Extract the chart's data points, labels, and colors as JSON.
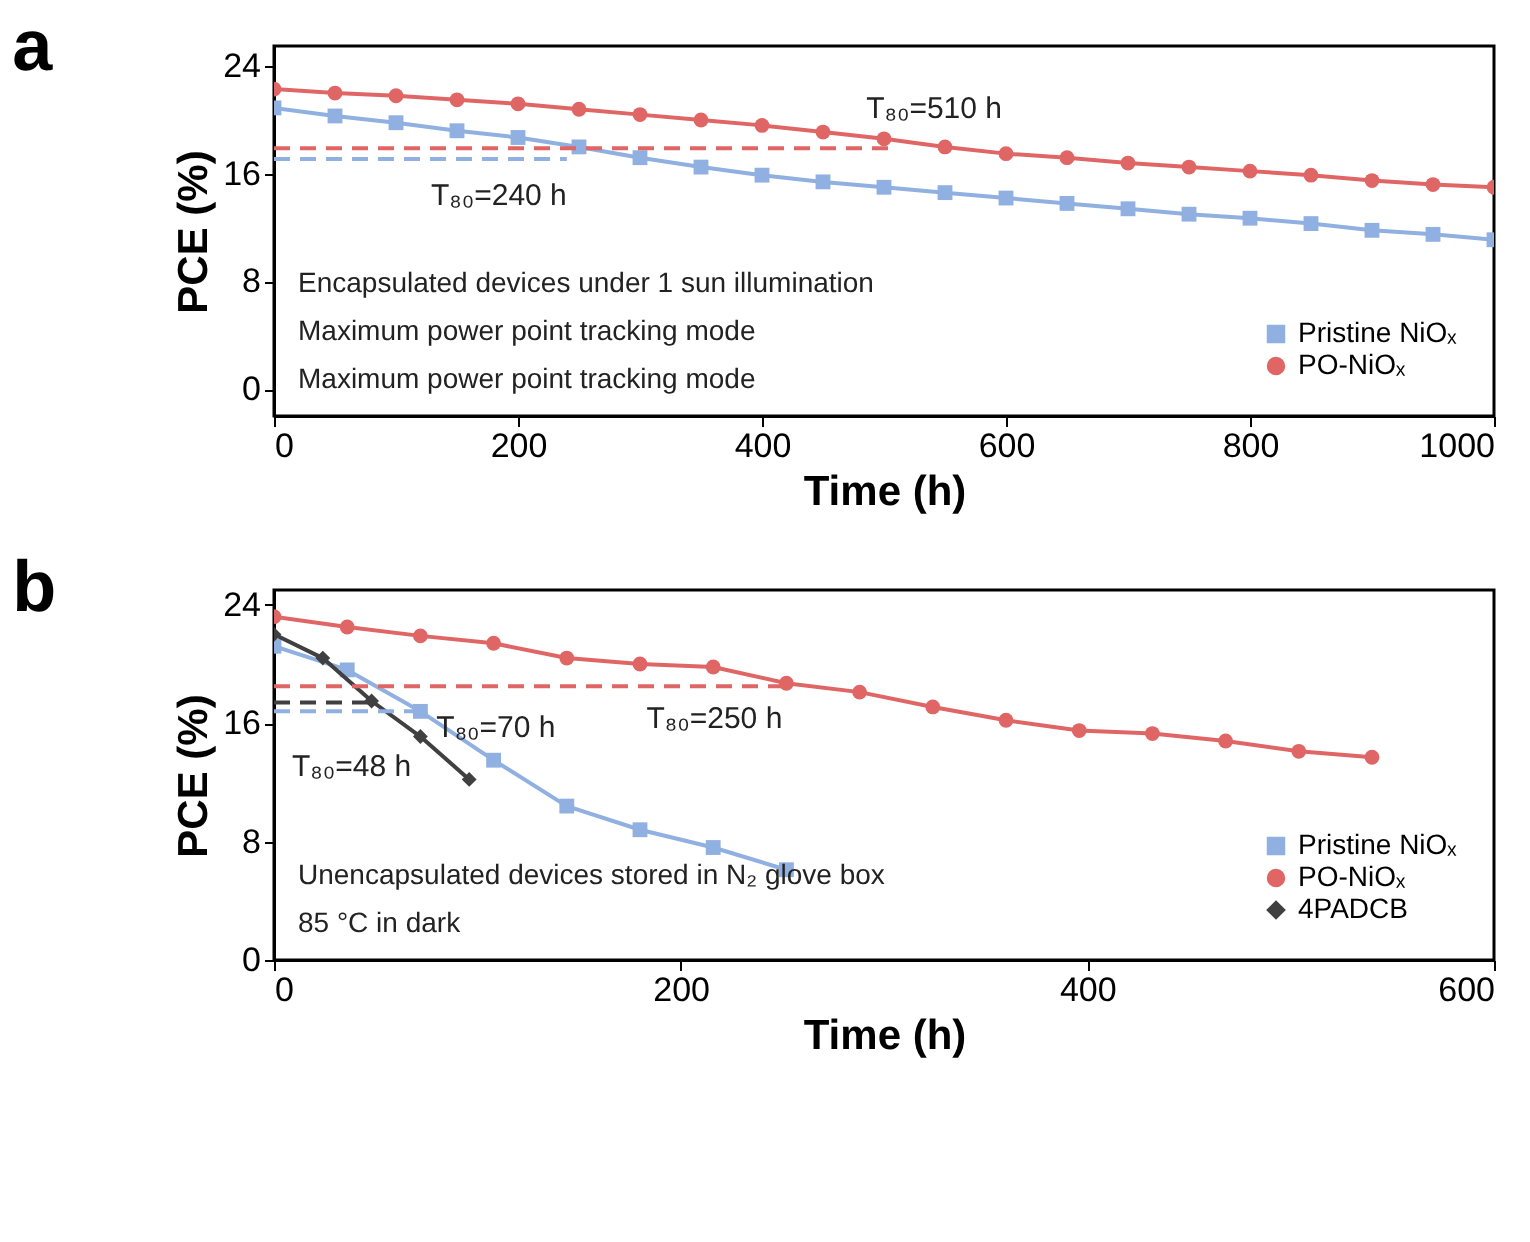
{
  "chart_data": [
    {
      "type": "line",
      "title": "a",
      "xlabel": "Time (h)",
      "ylabel": "PCE (%)",
      "xlim": [
        0,
        1000
      ],
      "xticks": [
        0,
        200,
        400,
        600,
        800,
        1000
      ],
      "ylim": [
        -2,
        25.5
      ],
      "yticks": [
        0,
        8,
        16,
        24
      ],
      "grid": false,
      "legend": "bottom right",
      "series": [
        {
          "name": "Pristine NiOₓ",
          "color": "#8fb0e0",
          "marker": "square",
          "x": [
            0,
            50,
            100,
            150,
            200,
            250,
            300,
            350,
            400,
            450,
            500,
            550,
            600,
            650,
            700,
            750,
            800,
            850,
            900,
            950,
            1000
          ],
          "values": [
            20.9,
            20.3,
            19.8,
            19.2,
            18.7,
            18.0,
            17.2,
            16.5,
            15.9,
            15.4,
            15.0,
            14.6,
            14.2,
            13.8,
            13.4,
            13.0,
            12.7,
            12.3,
            11.8,
            11.5,
            11.1
          ]
        },
        {
          "name": "PO-NiOₓ",
          "color": "#e06666",
          "marker": "circle",
          "x": [
            0,
            50,
            100,
            150,
            200,
            250,
            300,
            350,
            400,
            450,
            500,
            550,
            600,
            650,
            700,
            750,
            800,
            850,
            900,
            950,
            1000
          ],
          "values": [
            22.3,
            22.0,
            21.8,
            21.5,
            21.2,
            20.8,
            20.4,
            20.0,
            19.6,
            19.1,
            18.6,
            18.0,
            17.5,
            17.2,
            16.8,
            16.5,
            16.2,
            15.9,
            15.5,
            15.2,
            15.0
          ]
        },
        {
          "color": "#e06666",
          "line_style": "dashed",
          "marker": "none",
          "x": [
            0,
            510
          ],
          "values": [
            17.9,
            17.9
          ]
        },
        {
          "color": "#8fb0e0",
          "line_style": "dashed",
          "marker": "none",
          "x": [
            0,
            240
          ],
          "values": [
            17.1,
            17.1
          ]
        }
      ],
      "annotations": [
        {
          "text": "T₈₀=510 h",
          "x": 510,
          "y": 17.9
        },
        {
          "text": "T₈₀=240 h",
          "x": 240,
          "y": 17.1
        },
        "Encapsulated devices under 1 sun illumination",
        "Maximum power point tracking mode",
        "Maximum power point tracking mode"
      ]
    },
    {
      "type": "line",
      "title": "b",
      "xlabel": "Time (h)",
      "ylabel": "PCE (%)",
      "xlim": [
        0,
        600
      ],
      "xticks": [
        0,
        200,
        400,
        600
      ],
      "ylim": [
        0,
        25
      ],
      "yticks": [
        0,
        8,
        16,
        24
      ],
      "grid": false,
      "legend": "bottom right",
      "series": [
        {
          "name": "Pristine NiOₓ",
          "color": "#8fb0e0",
          "marker": "square",
          "x": [
            0,
            36,
            72,
            108,
            144,
            180,
            216,
            252
          ],
          "values": [
            21.2,
            19.6,
            16.8,
            13.5,
            10.4,
            8.8,
            7.6,
            6.1
          ]
        },
        {
          "name": "PO-NiOₓ",
          "color": "#e06666",
          "marker": "circle",
          "x": [
            0,
            36,
            72,
            108,
            144,
            180,
            216,
            252,
            288,
            324,
            360,
            396,
            432,
            468,
            504,
            540
          ],
          "values": [
            23.2,
            22.5,
            21.9,
            21.4,
            20.4,
            20.0,
            19.8,
            18.7,
            18.1,
            17.1,
            16.2,
            15.5,
            15.3,
            14.8,
            14.1,
            13.7
          ]
        },
        {
          "name": "4PADCB",
          "color": "#404040",
          "marker": "diamond",
          "x": [
            0,
            24,
            48,
            72,
            96
          ],
          "values": [
            22.0,
            20.4,
            17.5,
            15.1,
            12.2
          ]
        },
        {
          "color": "#e06666",
          "line_style": "dashed",
          "marker": "none",
          "x": [
            0,
            250
          ],
          "values": [
            18.5,
            18.5
          ]
        },
        {
          "color": "#404040",
          "line_style": "dashed",
          "marker": "none",
          "x": [
            0,
            48
          ],
          "values": [
            17.4,
            17.4
          ]
        },
        {
          "color": "#8fb0e0",
          "line_style": "dashed",
          "marker": "none",
          "x": [
            0,
            70
          ],
          "values": [
            16.8,
            16.8
          ]
        }
      ],
      "annotations": [
        {
          "text": "T₈₀=70 h",
          "x": 70,
          "y": 16.8
        },
        {
          "text": "T₈₀=250 h",
          "x": 250,
          "y": 18.5
        },
        {
          "text": "T₈₀=48 h",
          "x": 48,
          "y": 17.4
        },
        "Unencapsulated devices stored in N₂ glove box",
        "85 °C in dark"
      ]
    }
  ]
}
